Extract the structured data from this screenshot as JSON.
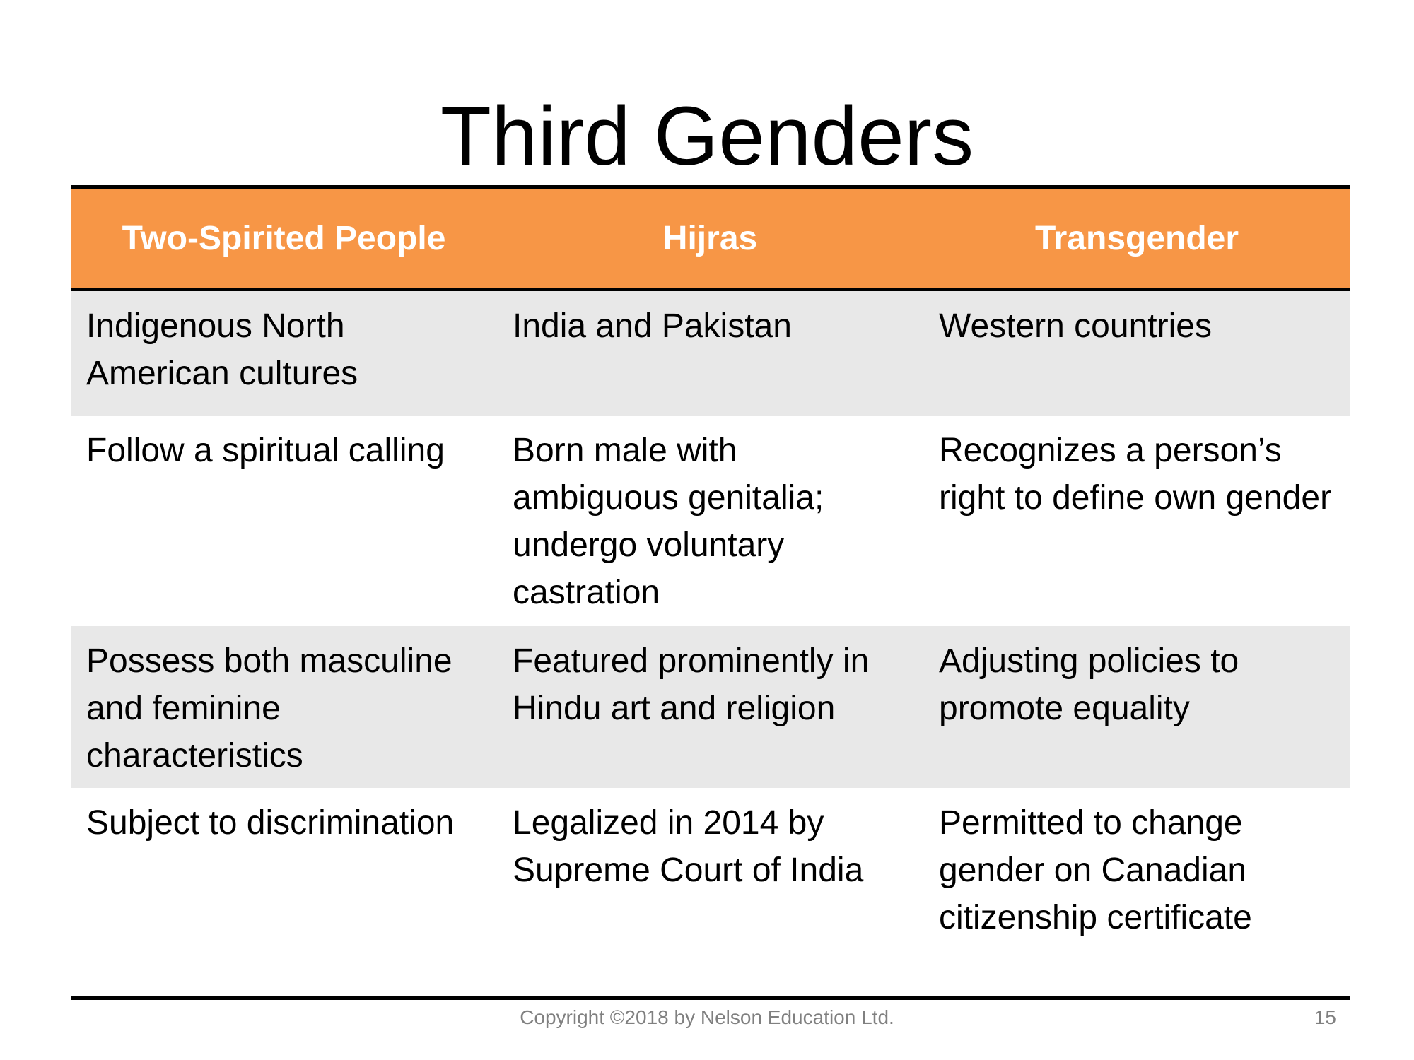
{
  "slide": {
    "title": "Third Genders",
    "footer": {
      "copyright": "Copyright ©2018 by Nelson Education Ltd.",
      "page_number": "15"
    }
  },
  "table": {
    "headers": [
      "Two-Spirited People",
      "Hijras",
      "Transgender"
    ],
    "rows": [
      [
        "Indigenous North American cultures",
        "India and Pakistan",
        "Western countries"
      ],
      [
        "Follow a spiritual calling",
        "Born male with ambiguous genitalia; undergo voluntary castration",
        "Recognizes a person’s right to define own gender"
      ],
      [
        "Possess both masculine and feminine characteristics",
        "Featured prominently in Hindu art and religion",
        "Adjusting policies to promote equality"
      ],
      [
        "Subject to discrimination",
        "Legalized in 2014 by Supreme Court of India",
        "Permitted to change gender on Canadian citizenship certificate"
      ]
    ]
  },
  "colors": {
    "header_fill": "#f79646",
    "header_text": "#ffffff",
    "shaded_row": "#e8e8e8",
    "footer_text": "#808080"
  }
}
